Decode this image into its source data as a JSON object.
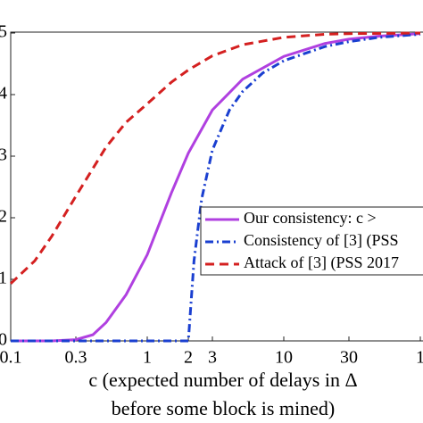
{
  "chart_data": {
    "type": "line",
    "xscale": "log",
    "xlabel": [
      "c (expected number of delays in Δ",
      "before some block is mined)"
    ],
    "xlim": [
      0.1,
      100
    ],
    "ylim": [
      0,
      0.5
    ],
    "xticks": [
      0.1,
      0.3,
      1,
      2,
      3,
      10,
      30,
      {
        "value": 100,
        "label": "1"
      }
    ],
    "yticks": [
      0,
      {
        "value": 0.1,
        "label": "1"
      },
      {
        "value": 0.2,
        "label": "2"
      },
      {
        "value": 0.3,
        "label": "3"
      },
      {
        "value": 0.4,
        "label": "4"
      },
      {
        "value": 0.5,
        "label": "5"
      }
    ],
    "series": [
      {
        "name": "Our consistency: c >",
        "color": "#b040e0",
        "dash": "solid",
        "x": [
          0.1,
          0.2,
          0.3,
          0.4,
          0.5,
          0.7,
          1,
          1.5,
          2,
          3,
          5,
          10,
          20,
          30,
          50,
          100
        ],
        "values": [
          0,
          0,
          0.002,
          0.01,
          0.03,
          0.075,
          0.14,
          0.24,
          0.305,
          0.375,
          0.425,
          0.462,
          0.483,
          0.49,
          0.495,
          0.499
        ]
      },
      {
        "name": "Consistency of [3] (PSS",
        "color": "#1a3fd0",
        "dash": "dashdot",
        "x": [
          0.1,
          2,
          2,
          2.2,
          2.5,
          3,
          4,
          5,
          7,
          10,
          20,
          30,
          50,
          100
        ],
        "values": [
          0,
          0,
          0,
          0.13,
          0.23,
          0.31,
          0.375,
          0.405,
          0.435,
          0.455,
          0.478,
          0.486,
          0.493,
          0.498
        ]
      },
      {
        "name": "Attack of [3] (PSS 2017",
        "color": "#d42020",
        "dash": "dashed",
        "x": [
          0.1,
          0.15,
          0.2,
          0.3,
          0.5,
          0.7,
          1,
          1.5,
          2,
          3,
          5,
          10,
          20,
          30,
          100
        ],
        "values": [
          0.093,
          0.13,
          0.17,
          0.235,
          0.315,
          0.355,
          0.385,
          0.42,
          0.44,
          0.463,
          0.481,
          0.493,
          0.498,
          0.499,
          0.5
        ]
      }
    ]
  }
}
